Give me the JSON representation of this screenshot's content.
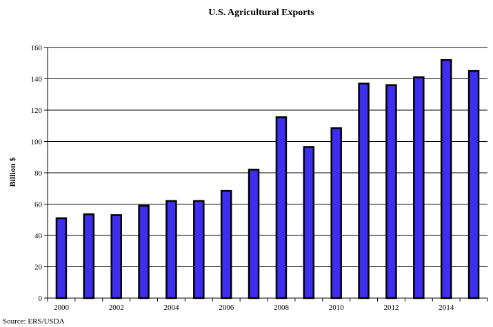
{
  "chart_data": {
    "type": "bar",
    "title": "U.S. Agricultural Exports",
    "ylabel": "Billion $",
    "xlabel": "",
    "categories": [
      "2000",
      "2001",
      "2002",
      "2003",
      "2004",
      "2005",
      "2006",
      "2007",
      "2008",
      "2009",
      "2010",
      "2011",
      "2012",
      "2013",
      "2014",
      "2015"
    ],
    "values": [
      51,
      53.5,
      53,
      59,
      62,
      62,
      68.5,
      82,
      115.5,
      96.5,
      108.5,
      137,
      136,
      141,
      152,
      145
    ],
    "xticks": [
      "2000",
      "2002",
      "2004",
      "2006",
      "2008",
      "2010",
      "2012",
      "2014"
    ],
    "ylim": [
      0,
      160
    ],
    "yticks": [
      0,
      20,
      40,
      60,
      80,
      100,
      120,
      140,
      160
    ],
    "grid": true,
    "source": "Source: ERS/USDA",
    "colors": {
      "bar_fill": "#3d2ef0",
      "bar_stroke": "#000000",
      "grid": "#000000"
    }
  }
}
